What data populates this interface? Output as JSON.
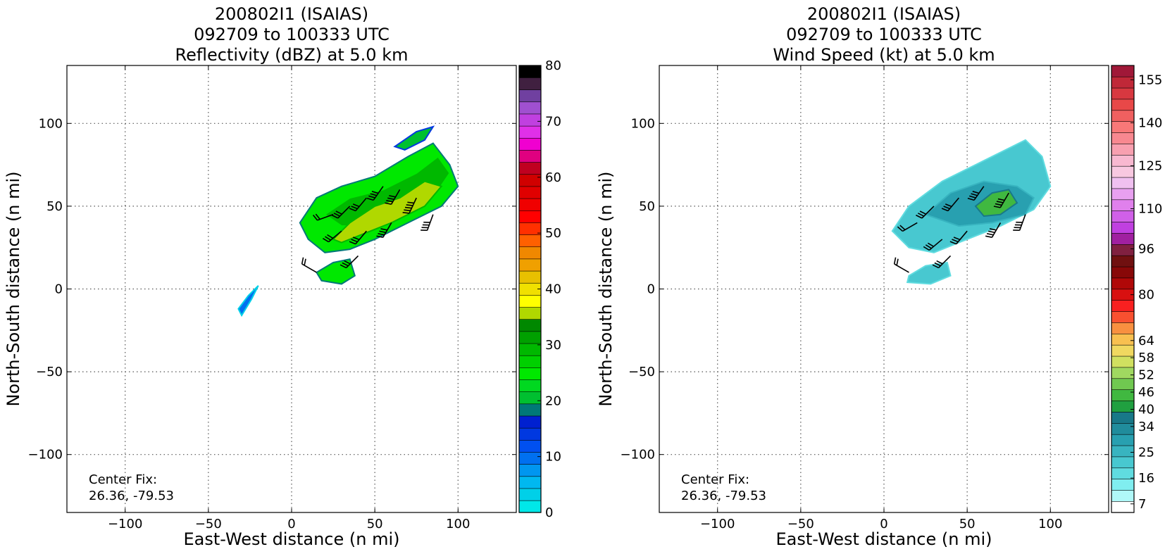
{
  "chart_data": [
    {
      "type": "heatmap",
      "title_lines": [
        "200802I1 (ISAIAS)",
        "092709 to 100333 UTC",
        "Reflectivity (dBZ) at 5.0 km"
      ],
      "xlabel": "East-West distance (n mi)",
      "ylabel": "North-South distance (n mi)",
      "xlim": [
        -135,
        135
      ],
      "ylim": [
        -135,
        135
      ],
      "xticks": [
        -100,
        -50,
        0,
        50,
        100
      ],
      "yticks": [
        -100,
        -50,
        0,
        50,
        100
      ],
      "xtick_labels": [
        "−100",
        "−50",
        "0",
        "50",
        "100"
      ],
      "ytick_labels": [
        "−100",
        "−50",
        "0",
        "50",
        "100"
      ],
      "grid": true,
      "annotation_lines": [
        "Center Fix:",
        "26.36, -79.53"
      ],
      "colorbar": {
        "min": 0,
        "max": 80,
        "tick_labels": [
          "0",
          "10",
          "20",
          "30",
          "40",
          "50",
          "60",
          "70",
          "80"
        ],
        "tick_values": [
          0,
          10,
          20,
          30,
          40,
          50,
          60,
          70,
          80
        ],
        "colors": [
          "#00e8e8",
          "#00d0e8",
          "#00b8f0",
          "#0096f0",
          "#0070f0",
          "#0050f0",
          "#0038e0",
          "#0020d0",
          "#007878",
          "#00c030",
          "#00d820",
          "#00e800",
          "#00d000",
          "#00b800",
          "#00a000",
          "#008800",
          "#b0d800",
          "#ffff00",
          "#f0e000",
          "#e8c000",
          "#f0a000",
          "#f08800",
          "#ff6000",
          "#ff3000",
          "#ff0000",
          "#f00000",
          "#e00000",
          "#d00000",
          "#c00020",
          "#e00080",
          "#f000d0",
          "#e030e8",
          "#c040e0",
          "#a050d0",
          "#7040a0",
          "#402040",
          "#000000"
        ]
      },
      "echoes": [
        {
          "x": [
            5,
            15,
            30,
            50,
            70,
            85,
            95,
            100,
            90,
            70,
            50,
            35,
            20,
            10
          ],
          "y": [
            40,
            55,
            62,
            68,
            80,
            88,
            75,
            62,
            50,
            40,
            30,
            24,
            22,
            30
          ],
          "value": 24
        },
        {
          "x": [
            20,
            35,
            55,
            75,
            88,
            95,
            85,
            65,
            45,
            30
          ],
          "y": [
            45,
            55,
            60,
            70,
            80,
            70,
            55,
            45,
            38,
            38
          ],
          "value": 30
        },
        {
          "x": [
            25,
            35,
            50,
            65,
            80,
            90,
            80,
            60,
            40,
            30
          ],
          "y": [
            30,
            40,
            50,
            55,
            65,
            62,
            50,
            40,
            32,
            28
          ],
          "value": 36
        },
        {
          "x": [
            15,
            25,
            35,
            38,
            30,
            18
          ],
          "y": [
            10,
            16,
            18,
            8,
            3,
            5
          ],
          "value": 24
        },
        {
          "x": [
            62,
            75,
            85,
            80,
            68
          ],
          "y": [
            86,
            95,
            98,
            90,
            84
          ],
          "value": 20
        },
        {
          "x": [
            -30,
            -24,
            -20,
            -26,
            -32
          ],
          "y": [
            -16,
            -6,
            2,
            -4,
            -12
          ],
          "value": 10
        }
      ],
      "wind_barbs": [
        {
          "x": 35,
          "y": 50,
          "dir": 225,
          "spd": 25
        },
        {
          "x": 45,
          "y": 55,
          "dir": 220,
          "spd": 30
        },
        {
          "x": 55,
          "y": 62,
          "dir": 215,
          "spd": 35
        },
        {
          "x": 65,
          "y": 60,
          "dir": 210,
          "spd": 40
        },
        {
          "x": 75,
          "y": 55,
          "dir": 205,
          "spd": 45
        },
        {
          "x": 85,
          "y": 45,
          "dir": 200,
          "spd": 40
        },
        {
          "x": 30,
          "y": 35,
          "dir": 230,
          "spd": 25
        },
        {
          "x": 45,
          "y": 35,
          "dir": 220,
          "spd": 30
        },
        {
          "x": 60,
          "y": 40,
          "dir": 210,
          "spd": 40
        },
        {
          "x": 40,
          "y": 20,
          "dir": 225,
          "spd": 25
        },
        {
          "x": 15,
          "y": 10,
          "dir": 300,
          "spd": 20
        },
        {
          "x": 25,
          "y": 45,
          "dir": 250,
          "spd": 20
        }
      ]
    },
    {
      "type": "heatmap",
      "title_lines": [
        "200802I1 (ISAIAS)",
        "092709 to 100333 UTC",
        "Wind Speed (kt) at 5.0 km"
      ],
      "xlabel": "East-West distance (n mi)",
      "ylabel": "North-South distance (n mi)",
      "xlim": [
        -135,
        135
      ],
      "ylim": [
        -135,
        135
      ],
      "xticks": [
        -100,
        -50,
        0,
        50,
        100
      ],
      "yticks": [
        -100,
        -50,
        0,
        50,
        100
      ],
      "xtick_labels": [
        "−100",
        "−50",
        "0",
        "50",
        "100"
      ],
      "ytick_labels": [
        "−100",
        "−50",
        "0",
        "50",
        "100"
      ],
      "grid": true,
      "annotation_lines": [
        "Center Fix:",
        "26.36, -79.53"
      ],
      "colorbar": {
        "min": 4,
        "max": 160,
        "tick_labels": [
          "7",
          "16",
          "25",
          "34",
          "40",
          "46",
          "52",
          "58",
          "64",
          "80",
          "96",
          "110",
          "125",
          "140",
          "155"
        ],
        "tick_values": [
          7,
          16,
          25,
          34,
          40,
          46,
          52,
          58,
          64,
          80,
          96,
          110,
          125,
          140,
          155
        ],
        "colors": [
          "#ffffff",
          "#b0f8f8",
          "#80eef0",
          "#60dce0",
          "#48c8d0",
          "#38b4c0",
          "#28a0b0",
          "#208c9c",
          "#187888",
          "#20a040",
          "#40b840",
          "#70c850",
          "#a0d860",
          "#d0e060",
          "#f0d860",
          "#f8c050",
          "#f89040",
          "#f85030",
          "#f82020",
          "#d81010",
          "#b00808",
          "#880808",
          "#701010",
          "#802040",
          "#a020a0",
          "#c040e0",
          "#d060e8",
          "#e080ec",
          "#e8a0f0",
          "#f0c0f0",
          "#f8c8e0",
          "#f8b8d0",
          "#f8a0b0",
          "#f88890",
          "#f87878",
          "#f06060",
          "#e84848",
          "#d83840",
          "#c02838",
          "#a01838"
        ]
      },
      "echoes": [
        {
          "x": [
            5,
            15,
            35,
            55,
            75,
            85,
            95,
            100,
            90,
            70,
            45,
            30,
            15
          ],
          "y": [
            35,
            50,
            65,
            75,
            85,
            90,
            80,
            62,
            48,
            38,
            28,
            22,
            25
          ],
          "value": 22
        },
        {
          "x": [
            25,
            40,
            60,
            80,
            90,
            85,
            65,
            45
          ],
          "y": [
            45,
            58,
            65,
            62,
            55,
            45,
            40,
            38
          ],
          "value": 30
        },
        {
          "x": [
            55,
            65,
            75,
            80,
            70,
            60
          ],
          "y": [
            50,
            58,
            60,
            52,
            45,
            44
          ],
          "value": 44
        },
        {
          "x": [
            15,
            25,
            38,
            40,
            28,
            14
          ],
          "y": [
            8,
            14,
            16,
            8,
            3,
            4
          ],
          "value": 22
        }
      ],
      "wind_barbs": [
        {
          "x": 30,
          "y": 50,
          "dir": 225,
          "spd": 25
        },
        {
          "x": 45,
          "y": 55,
          "dir": 220,
          "spd": 30
        },
        {
          "x": 60,
          "y": 62,
          "dir": 215,
          "spd": 35
        },
        {
          "x": 75,
          "y": 58,
          "dir": 210,
          "spd": 40
        },
        {
          "x": 85,
          "y": 45,
          "dir": 200,
          "spd": 40
        },
        {
          "x": 35,
          "y": 30,
          "dir": 230,
          "spd": 25
        },
        {
          "x": 50,
          "y": 35,
          "dir": 220,
          "spd": 30
        },
        {
          "x": 20,
          "y": 40,
          "dir": 240,
          "spd": 20
        },
        {
          "x": 40,
          "y": 20,
          "dir": 225,
          "spd": 25
        },
        {
          "x": 15,
          "y": 10,
          "dir": 300,
          "spd": 20
        },
        {
          "x": 70,
          "y": 40,
          "dir": 210,
          "spd": 40
        }
      ]
    }
  ]
}
